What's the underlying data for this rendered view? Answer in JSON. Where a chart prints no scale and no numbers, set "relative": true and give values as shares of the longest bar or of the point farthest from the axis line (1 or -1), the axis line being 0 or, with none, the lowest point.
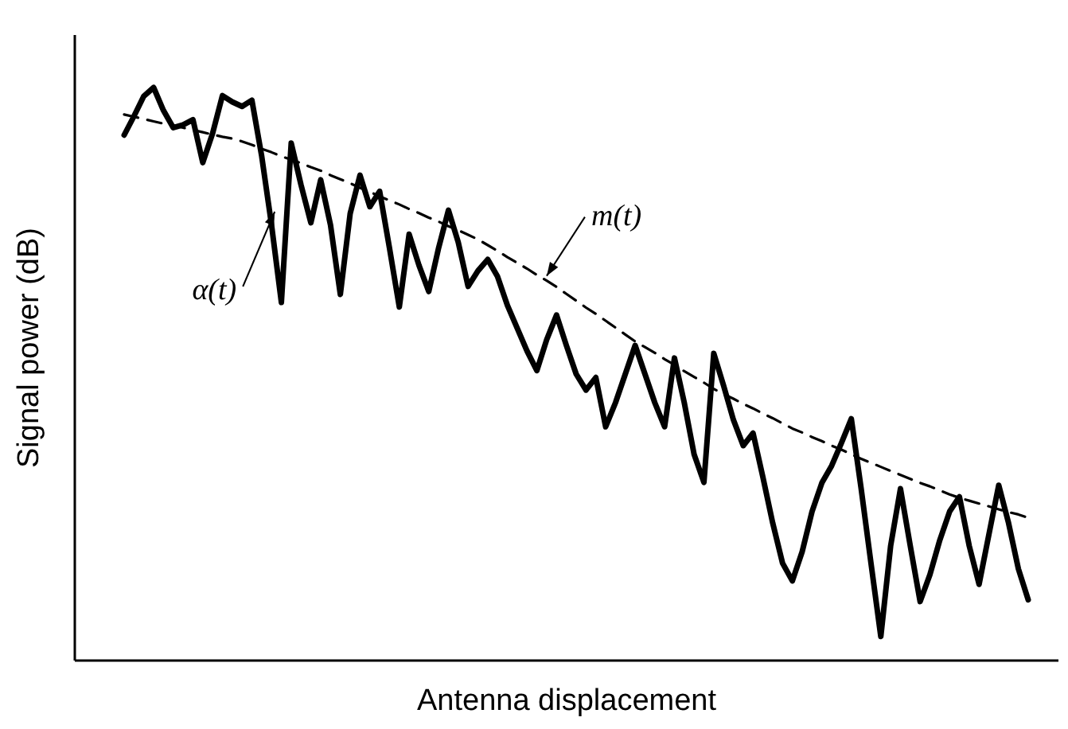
{
  "chart_data": {
    "type": "line",
    "xlabel": "Antenna displacement",
    "ylabel": "Signal power (dB)",
    "relative": true,
    "categories": [
      null,
      null,
      null,
      null,
      null,
      null,
      null,
      null,
      null,
      null,
      null,
      null,
      null,
      null,
      null,
      null,
      null,
      null,
      null,
      null,
      null,
      null,
      null,
      null,
      null,
      null,
      null,
      null,
      null,
      null,
      null,
      null,
      null,
      null,
      null,
      null,
      null,
      null,
      null,
      null,
      null,
      null,
      null,
      null,
      null,
      null,
      null,
      null,
      null,
      null,
      null,
      null,
      null,
      null,
      null,
      null,
      null,
      null,
      null,
      null,
      null,
      null,
      null,
      null,
      null,
      null,
      null,
      null,
      null,
      null,
      null,
      null,
      null,
      null,
      null,
      null,
      null,
      null,
      null,
      null,
      null,
      null,
      null,
      null,
      null,
      null,
      null,
      null,
      null,
      null,
      null,
      null,
      null
    ],
    "series": [
      {
        "name": "α(t)",
        "color": "#000000",
        "line_style": "solid",
        "values": [
          0.917,
          0.95,
          0.985,
          1.0,
          0.96,
          0.93,
          0.935,
          0.944,
          0.869,
          0.92,
          0.986,
          0.975,
          0.967,
          0.978,
          0.88,
          0.76,
          0.625,
          0.903,
          0.83,
          0.764,
          0.839,
          0.76,
          0.639,
          0.78,
          0.847,
          0.792,
          0.819,
          0.72,
          0.617,
          0.744,
          0.69,
          0.644,
          0.72,
          0.786,
          0.73,
          0.653,
          0.68,
          0.7,
          0.67,
          0.62,
          0.58,
          0.54,
          0.506,
          0.56,
          0.603,
          0.55,
          0.5,
          0.472,
          0.494,
          0.408,
          0.45,
          0.5,
          0.55,
          0.5,
          0.45,
          0.408,
          0.528,
          0.45,
          0.36,
          0.311,
          0.536,
          0.48,
          0.42,
          0.375,
          0.397,
          0.32,
          0.24,
          0.17,
          0.139,
          0.19,
          0.26,
          0.31,
          0.34,
          0.38,
          0.422,
          0.3,
          0.17,
          0.042,
          0.2,
          0.3,
          0.2,
          0.103,
          0.15,
          0.21,
          0.26,
          0.286,
          0.2,
          0.133,
          0.22,
          0.306,
          0.24,
          0.16,
          0.106
        ]
      },
      {
        "name": "m(t)",
        "color": "#000000",
        "line_style": "dashed",
        "values": [
          0.953,
          0.949,
          0.945,
          0.941,
          0.937,
          0.934,
          0.93,
          0.926,
          0.922,
          0.918,
          0.914,
          0.911,
          0.906,
          0.9,
          0.893,
          0.887,
          0.88,
          0.874,
          0.868,
          0.861,
          0.855,
          0.847,
          0.84,
          0.833,
          0.825,
          0.818,
          0.81,
          0.803,
          0.796,
          0.788,
          0.781,
          0.773,
          0.766,
          0.758,
          0.751,
          0.743,
          0.735,
          0.725,
          0.715,
          0.704,
          0.694,
          0.684,
          0.673,
          0.663,
          0.652,
          0.64,
          0.628,
          0.616,
          0.605,
          0.593,
          0.581,
          0.569,
          0.557,
          0.547,
          0.537,
          0.526,
          0.516,
          0.505,
          0.495,
          0.485,
          0.474,
          0.465,
          0.457,
          0.448,
          0.44,
          0.431,
          0.423,
          0.414,
          0.405,
          0.398,
          0.39,
          0.383,
          0.375,
          0.368,
          0.36,
          0.352,
          0.345,
          0.338,
          0.331,
          0.324,
          0.317,
          0.31,
          0.304,
          0.297,
          0.29,
          0.284,
          0.279,
          0.274,
          0.269,
          0.264,
          0.259,
          0.255,
          0.249
        ]
      }
    ]
  }
}
